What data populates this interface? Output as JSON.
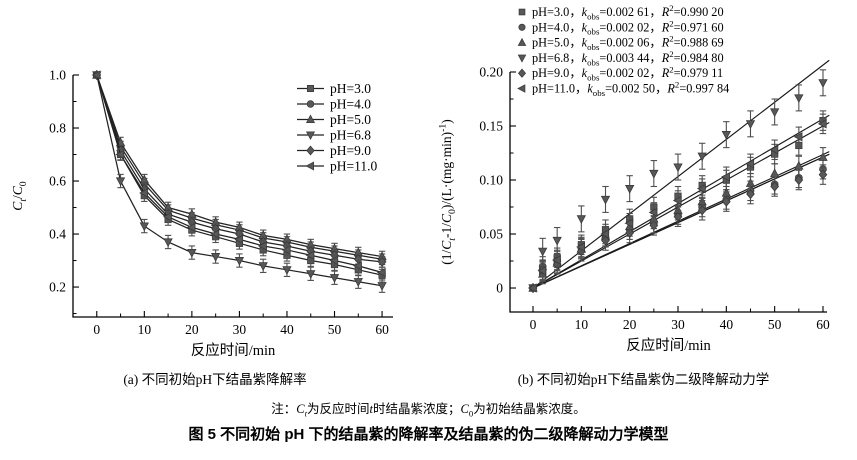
{
  "figure": {
    "title": "图 5  不同初始 pH 下的结晶紫的降解率及结晶紫的伪二级降解动力学模型",
    "note_rich": [
      {
        "t": "注："
      },
      {
        "t": "C",
        "i": true
      },
      {
        "t": "t",
        "i": true,
        "sub": true
      },
      {
        "t": "为反应时间"
      },
      {
        "t": "t",
        "i": true
      },
      {
        "t": "时结晶紫浓度；"
      },
      {
        "t": "C",
        "i": true
      },
      {
        "t": "0",
        "sub": true
      },
      {
        "t": "为初始结晶紫浓度。"
      }
    ]
  },
  "colors": {
    "marker": "#585858",
    "marker_edge": "#3a3a3a",
    "line": "#232323",
    "fit_line": "#1a1a1a",
    "error": "#4f4f4f",
    "axis": "#000000",
    "text": "#000000",
    "background": "#ffffff"
  },
  "chart_data": [
    {
      "id": "a",
      "type": "line",
      "caption": "(a) 不同初始pH下结晶紫降解率",
      "xlabel": "反应时间/min",
      "ylabel_rich": [
        {
          "t": "C",
          "i": true
        },
        {
          "t": "t",
          "i": true,
          "sub": true
        },
        {
          "t": "/"
        },
        {
          "t": "C",
          "i": true
        },
        {
          "t": "0",
          "sub": true
        }
      ],
      "xlim": [
        -5.0,
        62.3
      ],
      "ylim": [
        0.087,
        1.0
      ],
      "xticks": {
        "major": [
          0,
          10,
          20,
          30,
          40,
          50,
          60
        ],
        "labels": [
          "0",
          "10",
          "20",
          "30",
          "40",
          "50",
          "60"
        ],
        "minor": [
          5,
          15,
          25,
          35,
          45,
          55
        ]
      },
      "yticks": {
        "major": [
          0.2,
          0.4,
          0.6,
          0.8,
          1.0
        ],
        "labels": [
          "0.2",
          "0.4",
          "0.6",
          "0.8",
          "1.0"
        ],
        "minor": [
          0.1,
          0.3,
          0.5,
          0.7,
          0.9
        ]
      },
      "grid": false,
      "legend": {
        "position": "upper-right",
        "style": "line-marker"
      },
      "x": [
        0,
        5,
        10,
        15,
        20,
        25,
        30,
        35,
        40,
        45,
        50,
        55,
        60
      ],
      "series": [
        {
          "name": "pH=3.0",
          "marker": "square",
          "err": 0.022,
          "values": [
            1.0,
            0.7,
            0.545,
            0.455,
            0.415,
            0.39,
            0.365,
            0.34,
            0.32,
            0.3,
            0.285,
            0.265,
            0.245
          ]
        },
        {
          "name": "pH=4.0",
          "marker": "circle",
          "err": 0.02,
          "values": [
            1.0,
            0.73,
            0.59,
            0.49,
            0.46,
            0.435,
            0.415,
            0.385,
            0.37,
            0.35,
            0.335,
            0.32,
            0.305
          ]
        },
        {
          "name": "pH=5.0",
          "marker": "triangle-up",
          "err": 0.02,
          "values": [
            1.0,
            0.745,
            0.605,
            0.5,
            0.475,
            0.445,
            0.425,
            0.395,
            0.38,
            0.36,
            0.345,
            0.33,
            0.315
          ]
        },
        {
          "name": "pH=6.8",
          "marker": "triangle-down",
          "err": 0.025,
          "values": [
            1.0,
            0.6,
            0.43,
            0.37,
            0.33,
            0.315,
            0.3,
            0.28,
            0.265,
            0.25,
            0.235,
            0.22,
            0.205
          ]
        },
        {
          "name": "pH=9.0",
          "marker": "diamond",
          "err": 0.02,
          "values": [
            1.0,
            0.715,
            0.57,
            0.475,
            0.445,
            0.42,
            0.4,
            0.37,
            0.355,
            0.335,
            0.32,
            0.305,
            0.295
          ]
        },
        {
          "name": "pH=11.0",
          "marker": "triangle-left",
          "err": 0.02,
          "values": [
            1.0,
            0.7,
            0.555,
            0.465,
            0.425,
            0.4,
            0.38,
            0.355,
            0.34,
            0.32,
            0.3,
            0.28,
            0.255
          ]
        }
      ]
    },
    {
      "id": "b",
      "type": "scatter-fit",
      "caption": "(b) 不同初始pH下结晶紫伪二级降解动力学",
      "xlabel": "反应时间/min",
      "ylabel_rich": [
        {
          "t": "(1/"
        },
        {
          "t": "C",
          "i": true
        },
        {
          "t": "t",
          "i": true,
          "sub": true
        },
        {
          "t": "-1/"
        },
        {
          "t": "C",
          "i": true
        },
        {
          "t": "0",
          "sub": true
        },
        {
          "t": ")/(L·(mg·min)"
        },
        {
          "t": "-1",
          "sup": true
        },
        {
          "t": ")"
        }
      ],
      "xlim": [
        -4.76,
        60.83
      ],
      "ylim": [
        -0.0222,
        0.2
      ],
      "xticks": {
        "major": [
          0,
          10,
          20,
          30,
          40,
          50,
          60
        ],
        "labels": [
          "0",
          "10",
          "20",
          "30",
          "40",
          "50",
          "60"
        ],
        "minor": [
          5,
          15,
          25,
          35,
          45,
          55
        ]
      },
      "yticks": {
        "major": [
          0,
          0.05,
          0.1,
          0.15,
          0.2
        ],
        "labels": [
          "0",
          "0.05",
          "0.10",
          "0.15",
          "0.20"
        ],
        "minor": [
          0.025,
          0.075,
          0.125,
          0.175
        ]
      },
      "grid": false,
      "legend": {
        "position": "top",
        "style": "marker-only"
      },
      "fit_end_t": 61.3,
      "x": [
        0,
        2,
        5,
        10,
        15,
        20,
        25,
        30,
        35,
        40,
        45,
        50,
        55,
        60
      ],
      "series": [
        {
          "name": "pH=3.0",
          "marker": "square",
          "k_obs": 0.00261,
          "k_obs_label": "0.002 61",
          "r2_label": "0.990 20",
          "err": 0.009,
          "values": [
            0,
            0.015,
            0.028,
            0.04,
            0.054,
            0.064,
            0.075,
            0.085,
            0.095,
            0.1,
            0.112,
            0.124,
            0.132,
            0.155
          ],
          "legend_rich": [
            {
              "t": "pH=3.0，"
            },
            {
              "t": "k",
              "i": true
            },
            {
              "t": "obs",
              "sub": true
            },
            {
              "t": "=0.002 61，"
            },
            {
              "t": "R",
              "i": true
            },
            {
              "t": "2",
              "sup": true
            },
            {
              "t": "=0.990 20"
            }
          ]
        },
        {
          "name": "pH=4.0",
          "marker": "circle",
          "k_obs": 0.00202,
          "k_obs_label": "0.002 02",
          "r2_label": "0.971 60",
          "err": 0.009,
          "values": [
            0,
            0.02,
            0.025,
            0.037,
            0.047,
            0.054,
            0.06,
            0.068,
            0.075,
            0.082,
            0.09,
            0.096,
            0.102,
            0.11
          ],
          "legend_rich": [
            {
              "t": "pH=4.0，"
            },
            {
              "t": "k",
              "i": true
            },
            {
              "t": "obs",
              "sub": true
            },
            {
              "t": "=0.002 02，"
            },
            {
              "t": "R",
              "i": true
            },
            {
              "t": "2",
              "sup": true
            },
            {
              "t": "=0.971 60"
            }
          ]
        },
        {
          "name": "pH=5.0",
          "marker": "triangle-up",
          "k_obs": 0.00206,
          "k_obs_label": "0.002 06",
          "r2_label": "0.988 69",
          "err": 0.009,
          "values": [
            0,
            0.013,
            0.023,
            0.036,
            0.048,
            0.057,
            0.064,
            0.072,
            0.08,
            0.088,
            0.097,
            0.106,
            0.113,
            0.121
          ],
          "legend_rich": [
            {
              "t": "pH=5.0，"
            },
            {
              "t": "k",
              "i": true
            },
            {
              "t": "obs",
              "sub": true
            },
            {
              "t": "=0.002 06，"
            },
            {
              "t": "R",
              "i": true
            },
            {
              "t": "2",
              "sup": true
            },
            {
              "t": "=0.988 69"
            }
          ]
        },
        {
          "name": "pH=6.8",
          "marker": "triangle-down",
          "k_obs": 0.00344,
          "k_obs_label": "0.003 44",
          "r2_label": "0.984 80",
          "err": 0.012,
          "values": [
            0,
            0.034,
            0.044,
            0.064,
            0.082,
            0.092,
            0.106,
            0.112,
            0.122,
            0.142,
            0.152,
            0.163,
            0.176,
            0.19
          ],
          "legend_rich": [
            {
              "t": "pH=6.8，"
            },
            {
              "t": "k",
              "i": true
            },
            {
              "t": "obs",
              "sub": true
            },
            {
              "t": "=0.003 44，"
            },
            {
              "t": "R",
              "i": true
            },
            {
              "t": "2",
              "sup": true
            },
            {
              "t": "=0.984 80"
            }
          ]
        },
        {
          "name": "pH=9.0",
          "marker": "diamond",
          "k_obs": 0.00202,
          "k_obs_label": "0.002 02",
          "r2_label": "0.979 11",
          "err": 0.009,
          "values": [
            0,
            0.017,
            0.022,
            0.034,
            0.044,
            0.051,
            0.058,
            0.066,
            0.072,
            0.08,
            0.087,
            0.094,
            0.1,
            0.105
          ],
          "legend_rich": [
            {
              "t": "pH=9.0，"
            },
            {
              "t": "k",
              "i": true
            },
            {
              "t": "obs",
              "sub": true
            },
            {
              "t": "=0.002 02，"
            },
            {
              "t": "R",
              "i": true
            },
            {
              "t": "2",
              "sup": true
            },
            {
              "t": "=0.979 11"
            }
          ]
        },
        {
          "name": "pH=11.0",
          "marker": "triangle-left",
          "k_obs": 0.0025,
          "k_obs_label": "0.002 50",
          "r2_label": "0.997 84",
          "err": 0.009,
          "values": [
            0,
            0.016,
            0.026,
            0.038,
            0.05,
            0.06,
            0.07,
            0.081,
            0.092,
            0.103,
            0.115,
            0.128,
            0.14,
            0.152
          ],
          "legend_rich": [
            {
              "t": "pH=11.0，"
            },
            {
              "t": "k",
              "i": true
            },
            {
              "t": "obs",
              "sub": true
            },
            {
              "t": "=0.002 50，"
            },
            {
              "t": "R",
              "i": true
            },
            {
              "t": "2",
              "sup": true
            },
            {
              "t": "=0.997 84"
            }
          ]
        }
      ]
    }
  ]
}
